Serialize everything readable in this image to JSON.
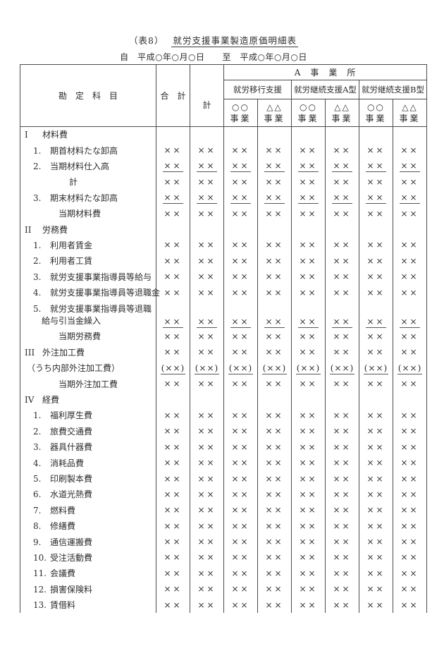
{
  "doc": {
    "table_no": "（表8）",
    "title": "就労支援事業製造原価明細表",
    "period": "自　平成○年○月○日　　至　平成○年○月○日"
  },
  "table": {
    "header": {
      "account": "勘　定　科　目",
      "grand_total": "合　計",
      "office_total": "計",
      "office": "A　事　業　所",
      "groups": [
        "就労移行支援",
        "就労継続支援A型",
        "就労継続支援B型"
      ],
      "unit_marks": [
        "○○",
        "△△"
      ],
      "unit_label": "事業"
    },
    "value_columns": 8,
    "rows": [
      {
        "num": "I",
        "label": "材料費",
        "kind": "section",
        "value": "",
        "underline": false
      },
      {
        "num": "1.",
        "label": "期首材料たな卸高",
        "kind": "item",
        "value": "××",
        "underline": false
      },
      {
        "num": "2.",
        "label": "当期材料仕入高",
        "kind": "item",
        "value": "××",
        "underline": true
      },
      {
        "num": "",
        "label": "計",
        "kind": "subtotal",
        "value": "××",
        "underline": false
      },
      {
        "num": "3.",
        "label": "期末材料たな卸高",
        "kind": "item",
        "value": "××",
        "underline": true
      },
      {
        "num": "",
        "label": "当期材料費",
        "kind": "total",
        "value": "××",
        "underline": false
      },
      {
        "num": "II",
        "label": "労務費",
        "kind": "section",
        "value": "",
        "underline": false
      },
      {
        "num": "1.",
        "label": "利用者賃金",
        "kind": "item",
        "value": "××",
        "underline": false
      },
      {
        "num": "2.",
        "label": "利用者工賃",
        "kind": "item",
        "value": "××",
        "underline": false
      },
      {
        "num": "3.",
        "label": "就労支援事業指導員等給与",
        "kind": "item",
        "value": "××",
        "underline": false
      },
      {
        "num": "4.",
        "label": "就労支援事業指導員等退職金",
        "kind": "item",
        "value": "××",
        "underline": false
      },
      {
        "num": "5.",
        "label": "就労支援事業指導員等退職",
        "label2": "給与引当金繰入",
        "kind": "item",
        "double": true,
        "value": "××",
        "underline": true
      },
      {
        "num": "",
        "label": "当期労務費",
        "kind": "total",
        "value": "××",
        "underline": false
      },
      {
        "num": "III",
        "label": "外注加工費",
        "kind": "section",
        "value": "××",
        "underline": false
      },
      {
        "num": "",
        "label": "（うち内部外注加工費）",
        "kind": "paren",
        "value": "(××)",
        "underline": true
      },
      {
        "num": "",
        "label": "当期外注加工費",
        "kind": "total",
        "value": "××",
        "underline": false
      },
      {
        "num": "IV",
        "label": "経費",
        "kind": "section",
        "value": "",
        "underline": false
      },
      {
        "num": "1.",
        "label": "福利厚生費",
        "kind": "item",
        "value": "××",
        "underline": false
      },
      {
        "num": "2.",
        "label": "旅費交通費",
        "kind": "item",
        "value": "××",
        "underline": false
      },
      {
        "num": "3.",
        "label": "器具什器費",
        "kind": "item",
        "value": "××",
        "underline": false
      },
      {
        "num": "4.",
        "label": "消耗品費",
        "kind": "item",
        "value": "××",
        "underline": false
      },
      {
        "num": "5.",
        "label": "印刷製本費",
        "kind": "item",
        "value": "××",
        "underline": false
      },
      {
        "num": "6.",
        "label": "水道光熱費",
        "kind": "item",
        "value": "××",
        "underline": false
      },
      {
        "num": "7.",
        "label": "燃料費",
        "kind": "item",
        "value": "××",
        "underline": false
      },
      {
        "num": "8.",
        "label": "修繕費",
        "kind": "item",
        "value": "××",
        "underline": false
      },
      {
        "num": "9.",
        "label": "通信運搬費",
        "kind": "item",
        "value": "××",
        "underline": false
      },
      {
        "num": "10.",
        "label": "受注活動費",
        "kind": "item",
        "value": "××",
        "underline": false
      },
      {
        "num": "11.",
        "label": "会議費",
        "kind": "item",
        "value": "××",
        "underline": false
      },
      {
        "num": "12.",
        "label": "損害保険料",
        "kind": "item",
        "value": "××",
        "underline": false
      },
      {
        "num": "13.",
        "label": "賃借料",
        "kind": "item",
        "value": "××",
        "underline": false
      }
    ]
  }
}
